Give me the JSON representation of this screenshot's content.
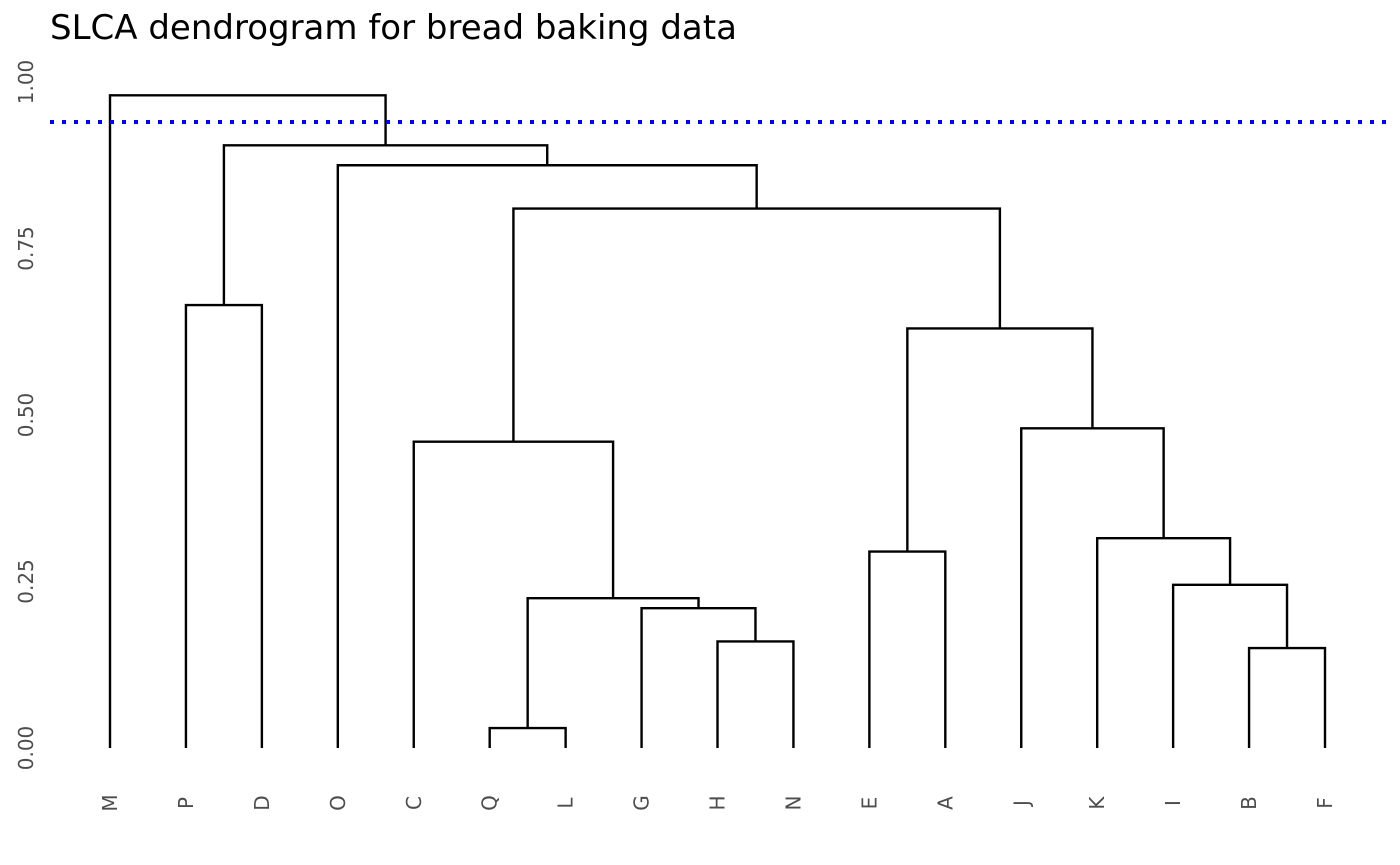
{
  "chart_data": {
    "type": "dendrogram",
    "title": "SLCA dendrogram for bread baking data",
    "xlabel": "",
    "ylabel": "",
    "ylim": [
      0,
      1.03
    ],
    "y_ticks": [
      "0.00",
      "0.25",
      "0.50",
      "0.75",
      "1.00"
    ],
    "y_tick_values": [
      0,
      0.25,
      0.5,
      0.75,
      1.0
    ],
    "grid": false,
    "leaf_order": [
      "M",
      "P",
      "D",
      "O",
      "C",
      "Q",
      "L",
      "G",
      "H",
      "N",
      "E",
      "A",
      "J",
      "K",
      "I",
      "B",
      "F"
    ],
    "merges": [
      {
        "left": "Q",
        "right": "L",
        "height": 0.03
      },
      {
        "left": "H",
        "right": "N",
        "height": 0.16
      },
      {
        "left": "B",
        "right": "F",
        "height": 0.15
      },
      {
        "left": "G",
        "right": "H,N",
        "height": 0.21
      },
      {
        "left": "Q,L",
        "right": "G,H,N",
        "height": 0.225
      },
      {
        "left": "I",
        "right": "B,F",
        "height": 0.245
      },
      {
        "left": "E",
        "right": "A",
        "height": 0.295
      },
      {
        "left": "K",
        "right": "I,B,F",
        "height": 0.315
      },
      {
        "left": "C",
        "right": "Q,L,G,H,N",
        "height": 0.46
      },
      {
        "left": "J",
        "right": "K,I,B,F",
        "height": 0.48
      },
      {
        "left": "E,A",
        "right": "J,K,I,B,F",
        "height": 0.63
      },
      {
        "left": "P",
        "right": "D",
        "height": 0.665
      },
      {
        "left": "C,Q,L,G,H,N",
        "right": "E,A,J,K,I,B,F",
        "height": 0.81
      },
      {
        "left": "O",
        "right": "C,Q,L,G,H,N,E,A,J,K,I,B,F",
        "height": 0.875
      },
      {
        "left": "P,D",
        "right": "O,C,Q,L,G,H,N,E,A,J,K,I,B,F",
        "height": 0.905
      },
      {
        "left": "M",
        "right": "P,D,O,C,Q,L,G,H,N,E,A,J,K,I,B,F",
        "height": 0.98
      }
    ],
    "cutoff": {
      "height": 0.94,
      "color": "#0000ff",
      "style": "dotted"
    },
    "line_color": "#000000"
  }
}
